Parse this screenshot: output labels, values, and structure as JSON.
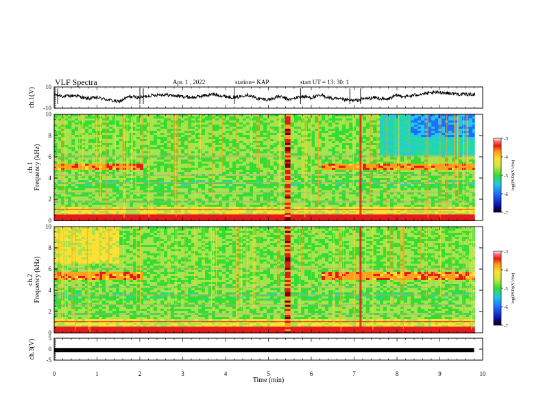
{
  "header": {
    "title": "VLF Spectra",
    "date": "Apr. 1 , 2022",
    "station": "station= KAP",
    "start": "start UT = 13: 30: 1"
  },
  "colors": {
    "ch1_waveform": "#000000",
    "ch3_band": "#000000",
    "colormap": [
      "#7a0000",
      "#e31b1b",
      "#ff9f1a",
      "#ffe033",
      "#a6e34d",
      "#33dd33",
      "#22dd99",
      "#22c8e6",
      "#1f6fff",
      "#0a0a99",
      "#000000"
    ]
  },
  "chart_data": [
    {
      "type": "line",
      "panel": "ch1_waveform",
      "ylabel": "ch.1(V)",
      "xlim": [
        0,
        10
      ],
      "ylim": [
        -10,
        10
      ],
      "y_ticks": [
        "10",
        "-10"
      ],
      "series": [
        {
          "x": [
            0,
            0.25,
            0.5,
            0.75,
            1.0,
            1.25,
            1.5,
            1.75,
            2.0,
            2.25,
            2.5,
            2.75,
            3.0,
            3.25,
            3.5,
            3.75,
            4.0,
            4.25,
            4.5,
            4.75,
            5.0,
            5.25,
            5.5,
            5.75,
            6.0,
            6.25,
            6.5,
            6.75,
            7.0,
            7.25,
            7.5,
            7.75,
            8.0,
            8.25,
            8.5,
            8.75,
            9.0,
            9.25,
            9.5,
            9.75
          ],
          "y": [
            3,
            1,
            2,
            -1,
            0,
            -2,
            -4,
            1,
            0,
            2,
            3,
            2,
            1,
            0,
            2,
            3,
            1,
            0,
            3,
            -1,
            -2,
            1,
            -2,
            1,
            0,
            2,
            -1,
            -2,
            -3,
            -1,
            0,
            -2,
            2,
            1,
            3,
            4,
            5,
            4,
            3,
            3
          ]
        }
      ]
    },
    {
      "type": "heatmap",
      "panel": "ch1_spectrogram",
      "ylabel": "ch.1 Frequency (kHz)",
      "xlim": [
        0,
        10
      ],
      "ylim": [
        0,
        10
      ],
      "y_ticks": [
        "10",
        "8",
        "6",
        "4",
        "2",
        "0"
      ],
      "colorbar": {
        "label": "log(PSD)(V²/Hz)",
        "range": [
          -7,
          -3
        ],
        "ticks": [
          "-3",
          "-4",
          "-5",
          "-6",
          "-7"
        ]
      },
      "features": {
        "broadband_burst_min": 5.45,
        "strong_impulse_min": 7.15,
        "red_band_khz": [
          4.8,
          5.3
        ]
      }
    },
    {
      "type": "heatmap",
      "panel": "ch2_spectrogram",
      "ylabel": "ch.2 Frequency (kHz)",
      "xlim": [
        0,
        10
      ],
      "ylim": [
        0,
        10
      ],
      "y_ticks": [
        "10",
        "8",
        "6",
        "4",
        "2",
        "0"
      ],
      "colorbar": {
        "label": "log(PSD)(V²/Hz)",
        "range": [
          -7,
          -3
        ],
        "ticks": [
          "-3",
          "-4",
          "-5",
          "-6",
          "-7"
        ]
      },
      "features": {
        "broadband_burst_min": 5.45,
        "strong_impulse_min": 7.15,
        "red_band_khz": [
          5.0,
          5.8
        ]
      }
    },
    {
      "type": "line",
      "panel": "ch3_waveform",
      "ylabel": "ch.3(V)",
      "xlim": [
        0,
        10
      ],
      "ylim": [
        -5,
        5
      ],
      "y_ticks": [
        "5",
        "0",
        "-5"
      ],
      "series": [
        {
          "x": [
            0,
            9.8
          ],
          "y": [
            -0.4,
            -0.4
          ]
        }
      ]
    }
  ],
  "x_axis": {
    "xlabel": "Time (min)",
    "ticks": [
      "0",
      "1",
      "2",
      "3",
      "4",
      "5",
      "6",
      "7",
      "8",
      "9",
      "10"
    ]
  }
}
